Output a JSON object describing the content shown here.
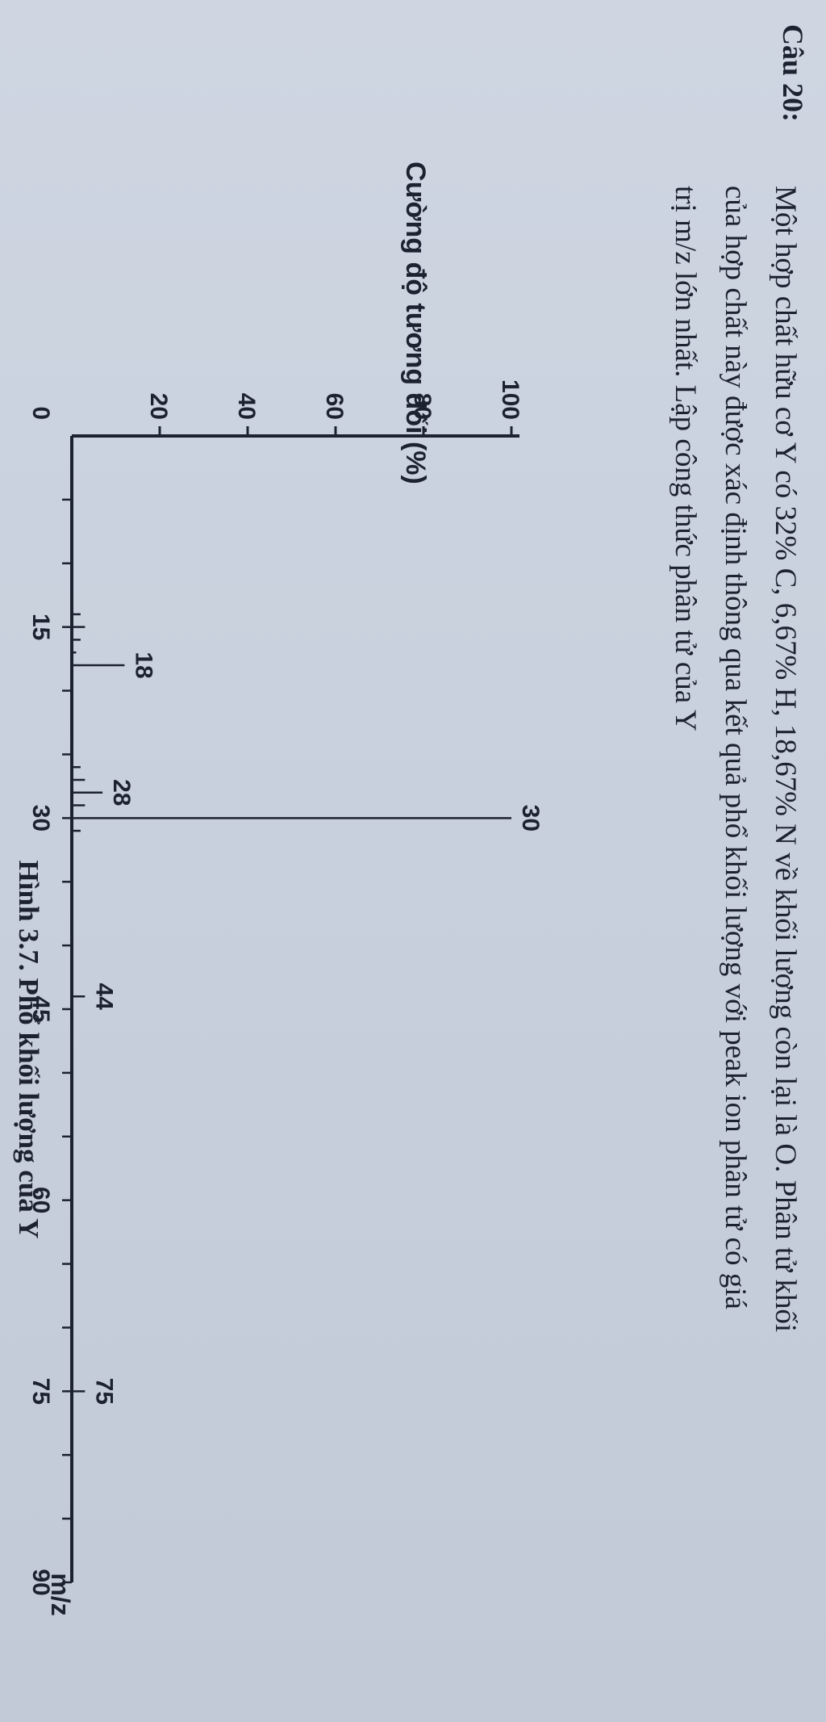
{
  "question": {
    "label": "Câu 20:",
    "lines": [
      "Một hợp chất hữu cơ Y có 32% C, 6,67% H, 18,67% N về khối lượng còn lại là O. Phân tử khối",
      "của hợp chất này được xác định thông qua kết quả phổ khối lượng với peak ion phân tử có giá",
      "trị m/z lớn nhất. Lập công thức phân tử của Y"
    ]
  },
  "figure": {
    "caption": "Hình 3.7. Phổ khối lượng của Y"
  },
  "chart_data": {
    "type": "bar",
    "ylabel": "Cường độ tương đối (%)",
    "xlabel": "m/z",
    "x_ticks": [
      0,
      15,
      30,
      45,
      60,
      75,
      90
    ],
    "y_ticks": [
      20,
      40,
      60,
      80,
      100
    ],
    "xlim": [
      0,
      90
    ],
    "ylim": [
      0,
      100
    ],
    "grid": false,
    "peaks": [
      {
        "mz": 14,
        "intensity": 2
      },
      {
        "mz": 15,
        "intensity": 3
      },
      {
        "mz": 16,
        "intensity": 2
      },
      {
        "mz": 17,
        "intensity": 1
      },
      {
        "mz": 18,
        "intensity": 12,
        "label": "18"
      },
      {
        "mz": 26,
        "intensity": 2
      },
      {
        "mz": 27,
        "intensity": 3
      },
      {
        "mz": 28,
        "intensity": 7,
        "label": "28"
      },
      {
        "mz": 29,
        "intensity": 3
      },
      {
        "mz": 30,
        "intensity": 100,
        "label": "30"
      },
      {
        "mz": 31,
        "intensity": 2
      },
      {
        "mz": 44,
        "intensity": 3,
        "label": "44"
      },
      {
        "mz": 75,
        "intensity": 3,
        "label": "75"
      }
    ]
  }
}
